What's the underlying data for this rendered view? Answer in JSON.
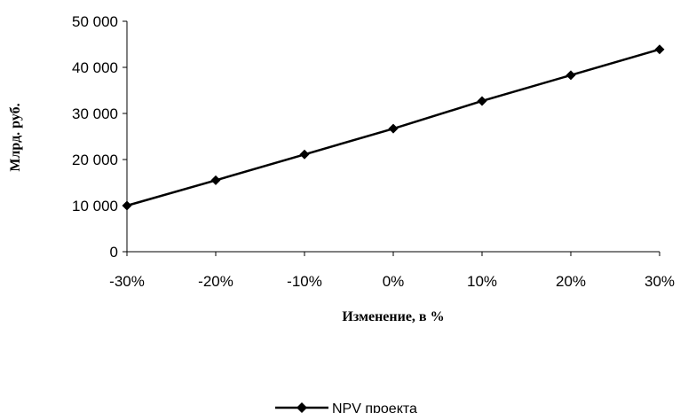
{
  "chart_data": {
    "type": "line",
    "categories": [
      "-30%",
      "-20%",
      "-10%",
      "0%",
      "10%",
      "20%",
      "30%"
    ],
    "series": [
      {
        "name": "NPV проекта",
        "values": [
          10000,
          15500,
          21100,
          26700,
          32700,
          38300,
          43900
        ]
      }
    ],
    "title": "",
    "xlabel": "Изменение, в %",
    "ylabel": "Млрд. руб.",
    "ylim": [
      0,
      50000
    ],
    "yticks": [
      "0",
      "10 000",
      "20 000",
      "30 000",
      "40 000",
      "50 000"
    ],
    "grid": false,
    "legend": "bottom",
    "colors": {
      "line": "#000000",
      "marker": "#000000"
    }
  }
}
